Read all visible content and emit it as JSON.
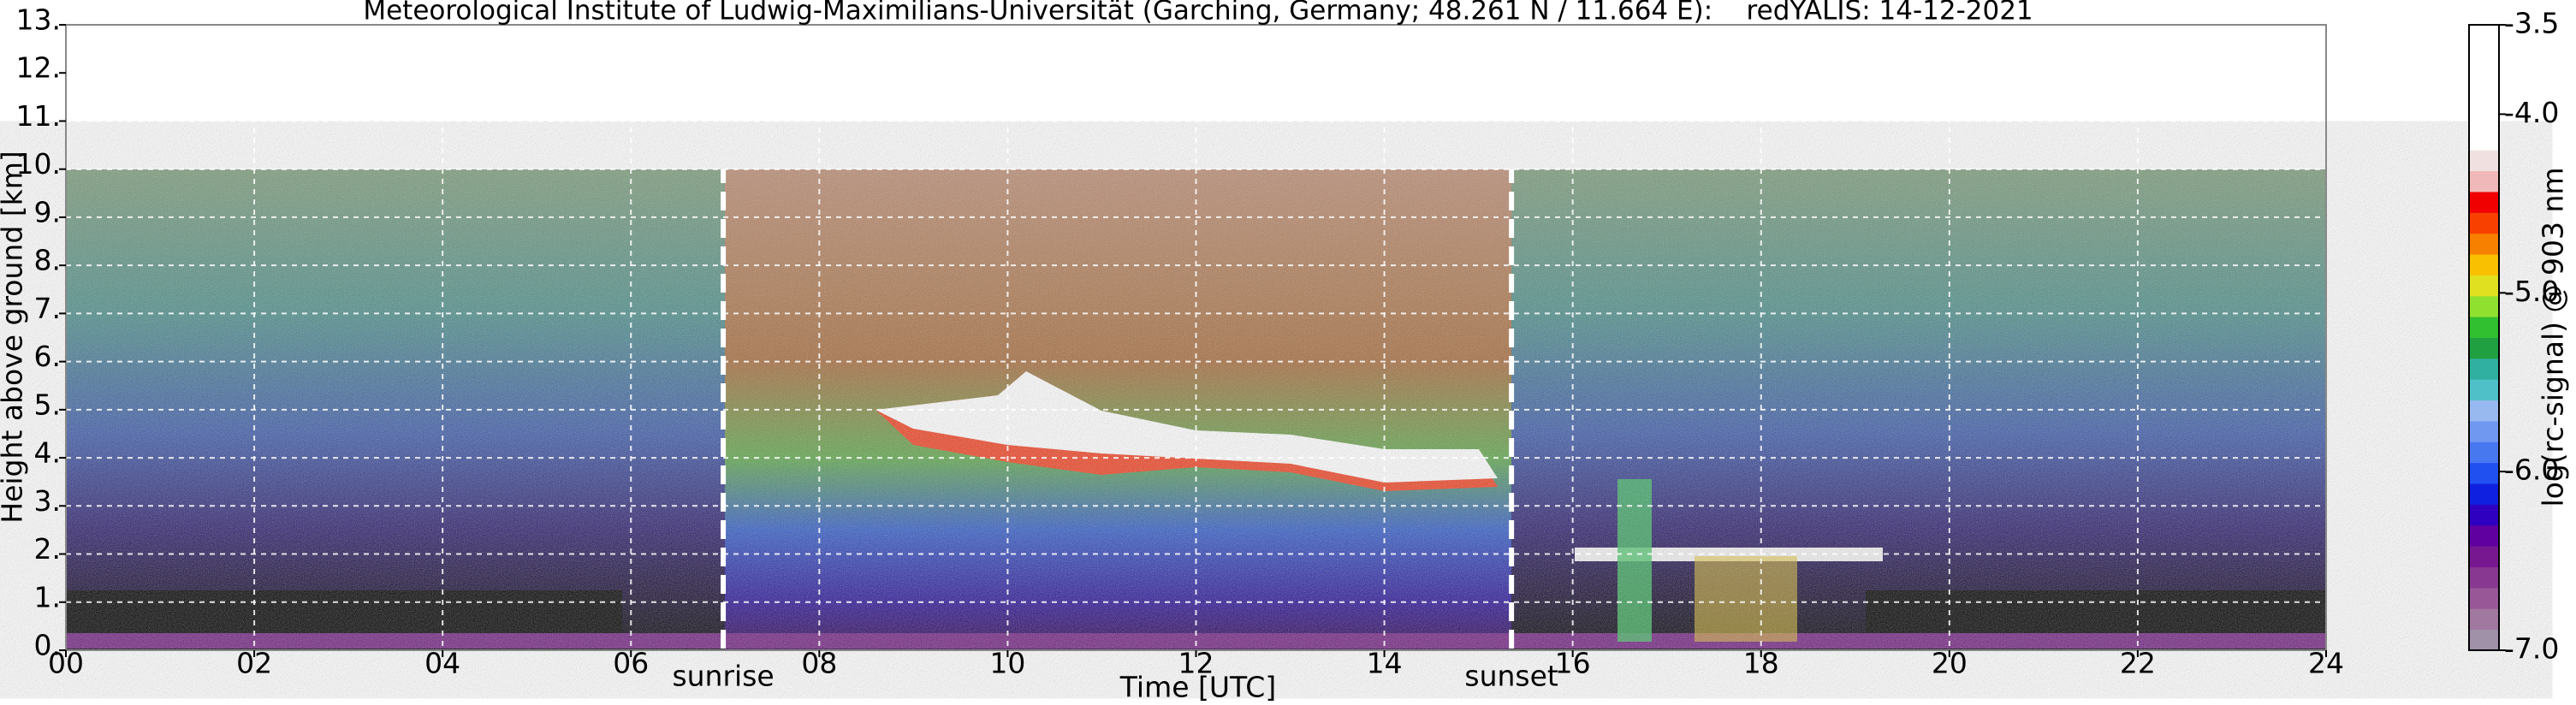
{
  "chart_data": {
    "type": "heatmap",
    "title": "Meteorological Institute of Ludwig-Maximilians-Universität (Garching, Germany; 48.261 N / 11.664 E):    redYALIS: 14-12-2021",
    "x_label": "Time [UTC]",
    "y_label": "Height above ground [km]",
    "xlim": [
      0,
      24
    ],
    "xticks": [
      {
        "value": 0,
        "label": "00"
      },
      {
        "value": 2,
        "label": "02"
      },
      {
        "value": 4,
        "label": "04"
      },
      {
        "value": 6,
        "label": "06"
      },
      {
        "value": 8,
        "label": "08"
      },
      10,
      12,
      14,
      16,
      18,
      20,
      22,
      24
    ],
    "ylim": [
      0,
      13
    ],
    "yticks": [
      {
        "value": 0,
        "label": "0."
      },
      {
        "value": 1,
        "label": "1."
      },
      {
        "value": 2,
        "label": "2."
      },
      {
        "value": 3,
        "label": "3."
      },
      {
        "value": 4,
        "label": "4."
      },
      {
        "value": 5,
        "label": "5."
      },
      {
        "value": 6,
        "label": "6."
      },
      {
        "value": 7,
        "label": "7."
      },
      {
        "value": 8,
        "label": "8."
      },
      {
        "value": 9,
        "label": "9."
      },
      {
        "value": 10,
        "label": "10."
      },
      {
        "value": 11,
        "label": "11."
      },
      {
        "value": 12,
        "label": "12."
      },
      {
        "value": 13,
        "label": "13."
      }
    ],
    "grid": true,
    "colorbar": {
      "label": "log(rc-signal) @ 903 nm",
      "lim": [
        -7,
        -3.5
      ],
      "ticks": [
        {
          "value": -3.5,
          "label": "-3.5"
        },
        {
          "value": -4,
          "label": "-4.0"
        },
        {
          "value": -5,
          "label": "-5.0"
        },
        {
          "value": -6,
          "label": "-6.0"
        },
        {
          "value": -7,
          "label": "-7.0"
        }
      ],
      "colors": [
        "#a090a8",
        "#a078a0",
        "#985898",
        "#883890",
        "#781890",
        "#6000a0",
        "#3000c0",
        "#1020e0",
        "#2050f0",
        "#4878f0",
        "#7098f0",
        "#98b8f0",
        "#50c0c8",
        "#30b0a0",
        "#20a040",
        "#30c030",
        "#90e030",
        "#e0e020",
        "#f8c000",
        "#f88000",
        "#f84000",
        "#f00000",
        "#f0b8b8",
        "#f0e0e0",
        "#ffffff",
        "#ffffff",
        "#ffffff",
        "#ffffff",
        "#ffffff",
        "#ffffff"
      ]
    },
    "annotations": [
      {
        "text": "sunrise",
        "x": 6.98
      },
      {
        "text": "sunset",
        "x": 15.35
      }
    ]
  }
}
